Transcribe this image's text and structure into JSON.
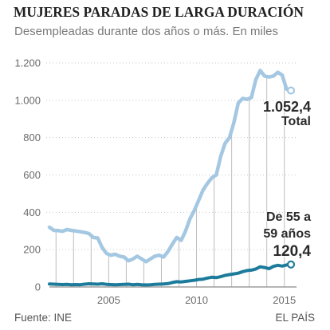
{
  "chart_data": {
    "type": "line",
    "title": "MUJERES PARADAS DE LARGA DURACIÓN",
    "subtitle": "Desempleadas durante dos años o más. En miles",
    "ylim": [
      0,
      1200
    ],
    "yticks": [
      0,
      200,
      400,
      600,
      800,
      1000,
      1200
    ],
    "ytick_labels": [
      "0",
      "200",
      "400",
      "600",
      "800",
      "1.000",
      "1.200"
    ],
    "xticks": [
      "2005",
      "2010",
      "2015"
    ],
    "grid": true,
    "x": [
      2002.125,
      2002.375,
      2002.625,
      2002.875,
      2003.125,
      2003.375,
      2003.625,
      2003.875,
      2004.125,
      2004.375,
      2004.625,
      2004.875,
      2005.125,
      2005.375,
      2005.625,
      2005.875,
      2006.125,
      2006.375,
      2006.625,
      2006.875,
      2007.125,
      2007.375,
      2007.625,
      2007.875,
      2008.125,
      2008.375,
      2008.625,
      2008.875,
      2009.125,
      2009.375,
      2009.625,
      2009.875,
      2010.125,
      2010.375,
      2010.625,
      2010.875,
      2011.125,
      2011.375,
      2011.625,
      2011.875,
      2012.125,
      2012.375,
      2012.625,
      2012.875,
      2013.125,
      2013.375,
      2013.625,
      2013.875,
      2014.125,
      2014.375,
      2014.625,
      2014.875,
      2015.125,
      2015.375,
      2015.625,
      2015.875
    ],
    "series": [
      {
        "name": "Total",
        "color": "#a4c7e2",
        "end_label": "1.052,4",
        "values": [
          320,
          303,
          302,
          298,
          308,
          303,
          300,
          296,
          292,
          286,
          265,
          262,
          212,
          180,
          170,
          175,
          165,
          160,
          140,
          150,
          165,
          150,
          135,
          150,
          165,
          170,
          160,
          190,
          230,
          265,
          250,
          300,
          365,
          410,
          465,
          520,
          555,
          585,
          600,
          700,
          770,
          800,
          880,
          985,
          1010,
          1005,
          1015,
          1110,
          1160,
          1130,
          1125,
          1130,
          1150,
          1135,
          1060,
          1052.4
        ]
      },
      {
        "name": "De 55 a 59 años",
        "color": "#1c7b9b",
        "end_label": "120,4",
        "values": [
          16,
          15,
          14,
          13,
          14,
          12,
          13,
          12,
          15,
          17,
          16,
          15,
          17,
          14,
          13,
          12,
          13,
          14,
          15,
          12,
          14,
          12,
          11,
          12,
          14,
          15,
          16,
          18,
          24,
          28,
          27,
          30,
          33,
          36,
          40,
          42,
          48,
          52,
          50,
          55,
          62,
          66,
          70,
          74,
          82,
          88,
          90,
          96,
          108,
          104,
          98,
          110,
          116,
          112,
          118,
          120.4
        ]
      }
    ]
  },
  "footer": {
    "source": "Fuente: INE",
    "brand": "EL PAÍS"
  }
}
